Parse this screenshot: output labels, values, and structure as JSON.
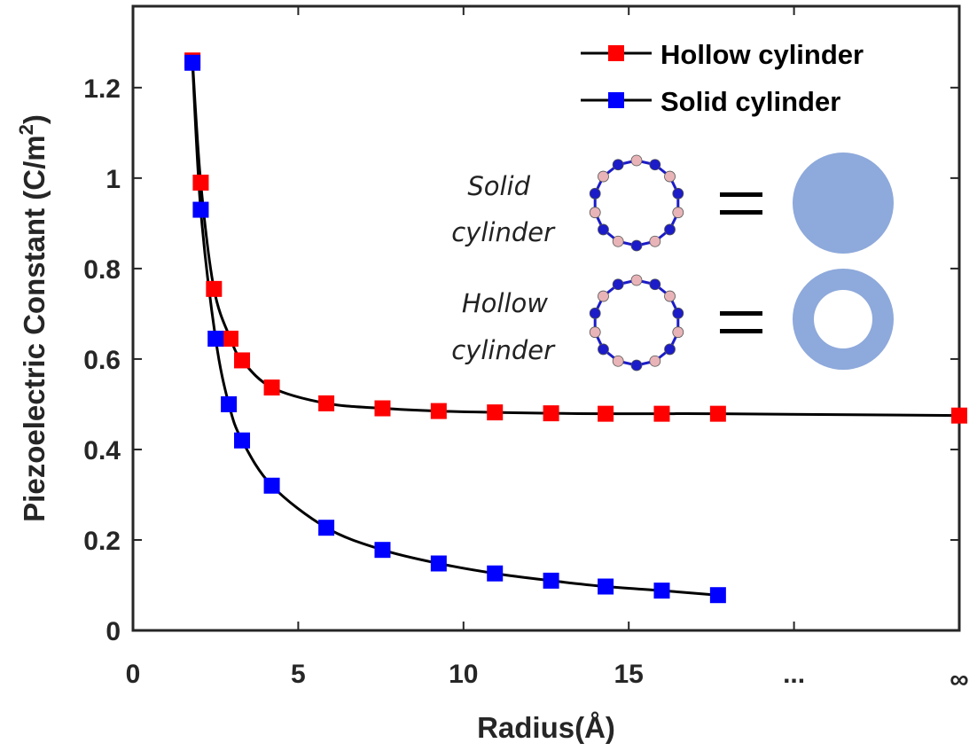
{
  "chart_data": {
    "type": "line",
    "xlabel": "Radius(Å)",
    "ylabel": "Piezoelectric Constant (C/m²)",
    "ylabel_parts": {
      "main": "Piezoelectric Constant (C/m",
      "sup": "2",
      "close": ")"
    },
    "xlim": [
      0,
      25
    ],
    "ylim": [
      0,
      1.38
    ],
    "x_ticks": [
      {
        "value": 0,
        "label": "0"
      },
      {
        "value": 5,
        "label": "5"
      },
      {
        "value": 10,
        "label": "10"
      },
      {
        "value": 15,
        "label": "15"
      },
      {
        "value": 20,
        "label": "..."
      },
      {
        "value": 25,
        "label": "∞"
      }
    ],
    "y_ticks": [
      {
        "value": 0,
        "label": "0"
      },
      {
        "value": 0.2,
        "label": "0.2"
      },
      {
        "value": 0.4,
        "label": "0.4"
      },
      {
        "value": 0.6,
        "label": "0.6"
      },
      {
        "value": 0.8,
        "label": "0.8"
      },
      {
        "value": 1.0,
        "label": "1"
      },
      {
        "value": 1.2,
        "label": "1.2"
      }
    ],
    "grid": false,
    "legend_position": "top-right",
    "series": [
      {
        "name": "Hollow cylinder",
        "marker_color": "#ff0000",
        "line_color": "#000000",
        "x": [
          1.8,
          2.05,
          2.45,
          2.95,
          3.3,
          4.2,
          5.85,
          7.55,
          9.25,
          10.95,
          12.65,
          14.3,
          16.0,
          17.7,
          25
        ],
        "y": [
          1.26,
          0.99,
          0.755,
          0.645,
          0.597,
          0.537,
          0.502,
          0.491,
          0.485,
          0.482,
          0.48,
          0.479,
          0.479,
          0.479,
          0.475
        ]
      },
      {
        "name": "Solid cylinder",
        "marker_color": "#0000ff",
        "line_color": "#000000",
        "x": [
          1.8,
          2.05,
          2.5,
          2.9,
          3.3,
          4.2,
          5.85,
          7.55,
          9.25,
          10.95,
          12.65,
          14.3,
          16.0,
          17.7
        ],
        "y": [
          1.255,
          0.93,
          0.645,
          0.5,
          0.42,
          0.32,
          0.227,
          0.178,
          0.148,
          0.126,
          0.11,
          0.097,
          0.088,
          0.078
        ]
      }
    ]
  },
  "inset": {
    "solid_label_line1": "Solid",
    "solid_label_line2": "cylinder",
    "hollow_label_line1": "Hollow",
    "hollow_label_line2": "cylinder",
    "equals_symbol": "=",
    "shape_color": "#8ea9db",
    "ring_atom_colors": [
      "#e8b4b8",
      "#1c1cc8"
    ]
  }
}
